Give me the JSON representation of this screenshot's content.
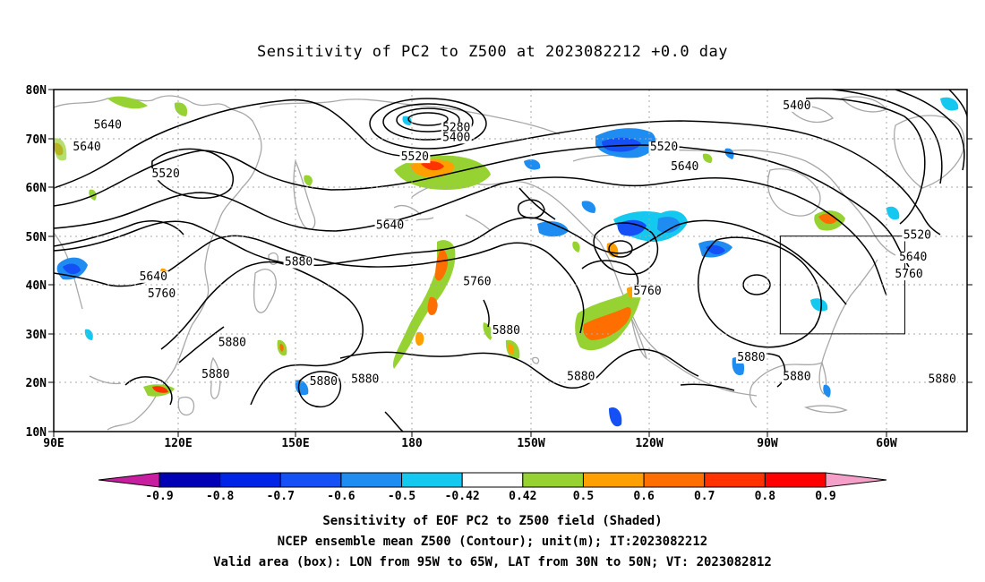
{
  "title": "Sensitivity of PC2 to Z500 at 2023082212 +0.0 day",
  "map": {
    "lon_min": 90,
    "lon_max": 310,
    "lat_min": 10,
    "lat_max": 80,
    "lat_labels": [
      "10N",
      "20N",
      "30N",
      "40N",
      "50N",
      "60N",
      "70N",
      "80N"
    ],
    "lon_labels": [
      "90E",
      "120E",
      "150E",
      "180",
      "150W",
      "120W",
      "90W",
      "60W"
    ],
    "valid_box": {
      "lon_w_deg": 265,
      "lon_e_deg": 295,
      "lat_s": 30,
      "lat_n": 50
    },
    "contour_color": "#000000",
    "coast_color": "#a8a8a8"
  },
  "contour_labels": [
    {
      "text": "5640",
      "lon": 103,
      "lat": 72
    },
    {
      "text": "5640",
      "lon": 98,
      "lat": 67.5
    },
    {
      "text": "5520",
      "lon": 117,
      "lat": 62
    },
    {
      "text": "5280",
      "lon": 187,
      "lat": 71.5
    },
    {
      "text": "5400",
      "lon": 187,
      "lat": 69.5
    },
    {
      "text": "5520",
      "lon": 177,
      "lat": 65.5
    },
    {
      "text": "5520",
      "lon": 237,
      "lat": 67.5
    },
    {
      "text": "5640",
      "lon": 242,
      "lat": 63.5
    },
    {
      "text": "5400",
      "lon": 269,
      "lat": 76
    },
    {
      "text": "5640",
      "lon": 171,
      "lat": 51.5
    },
    {
      "text": "5880",
      "lon": 149,
      "lat": 44
    },
    {
      "text": "5640",
      "lon": 114,
      "lat": 41
    },
    {
      "text": "5760",
      "lon": 116,
      "lat": 37.5
    },
    {
      "text": "5760",
      "lon": 192,
      "lat": 40
    },
    {
      "text": "5760",
      "lon": 233,
      "lat": 38
    },
    {
      "text": "5880",
      "lon": 199,
      "lat": 30
    },
    {
      "text": "5880",
      "lon": 133,
      "lat": 27.5
    },
    {
      "text": "5880",
      "lon": 129,
      "lat": 21
    },
    {
      "text": "5880",
      "lon": 155,
      "lat": 19.5
    },
    {
      "text": "5880",
      "lon": 165,
      "lat": 20
    },
    {
      "text": "5880",
      "lon": 217,
      "lat": 20.5
    },
    {
      "text": "5880",
      "lon": 258,
      "lat": 24.5
    },
    {
      "text": "5880",
      "lon": 269,
      "lat": 20.5
    },
    {
      "text": "5880",
      "lon": 304,
      "lat": 20
    },
    {
      "text": "5520",
      "lon": 298,
      "lat": 49.5
    },
    {
      "text": "5640",
      "lon": 297,
      "lat": 45
    },
    {
      "text": "5760",
      "lon": 296,
      "lat": 41.5
    }
  ],
  "colorbar": {
    "labels": [
      "-0.9",
      "-0.8",
      "-0.7",
      "-0.6",
      "-0.5",
      "-0.42",
      "0.42",
      "0.5",
      "0.6",
      "0.7",
      "0.8",
      "0.9"
    ],
    "colors": [
      "#0000b4",
      "#0024e6",
      "#1450f5",
      "#1e8cf0",
      "#14c8f0",
      "#ffffff",
      "#96d232",
      "#ffa000",
      "#ff6e00",
      "#ff3200",
      "#ff0000"
    ],
    "low_extension_color": "#c81ea0",
    "high_extension_color": "#f5a0c8"
  },
  "captions": [
    "Sensitivity of EOF PC2 to Z500 field (Shaded)",
    "NCEP ensemble mean Z500 (Contour); unit(m); IT:2023082212",
    "Valid area (box): LON from 95W to 65W, LAT from 30N to 50N; VT: 2023082812"
  ]
}
